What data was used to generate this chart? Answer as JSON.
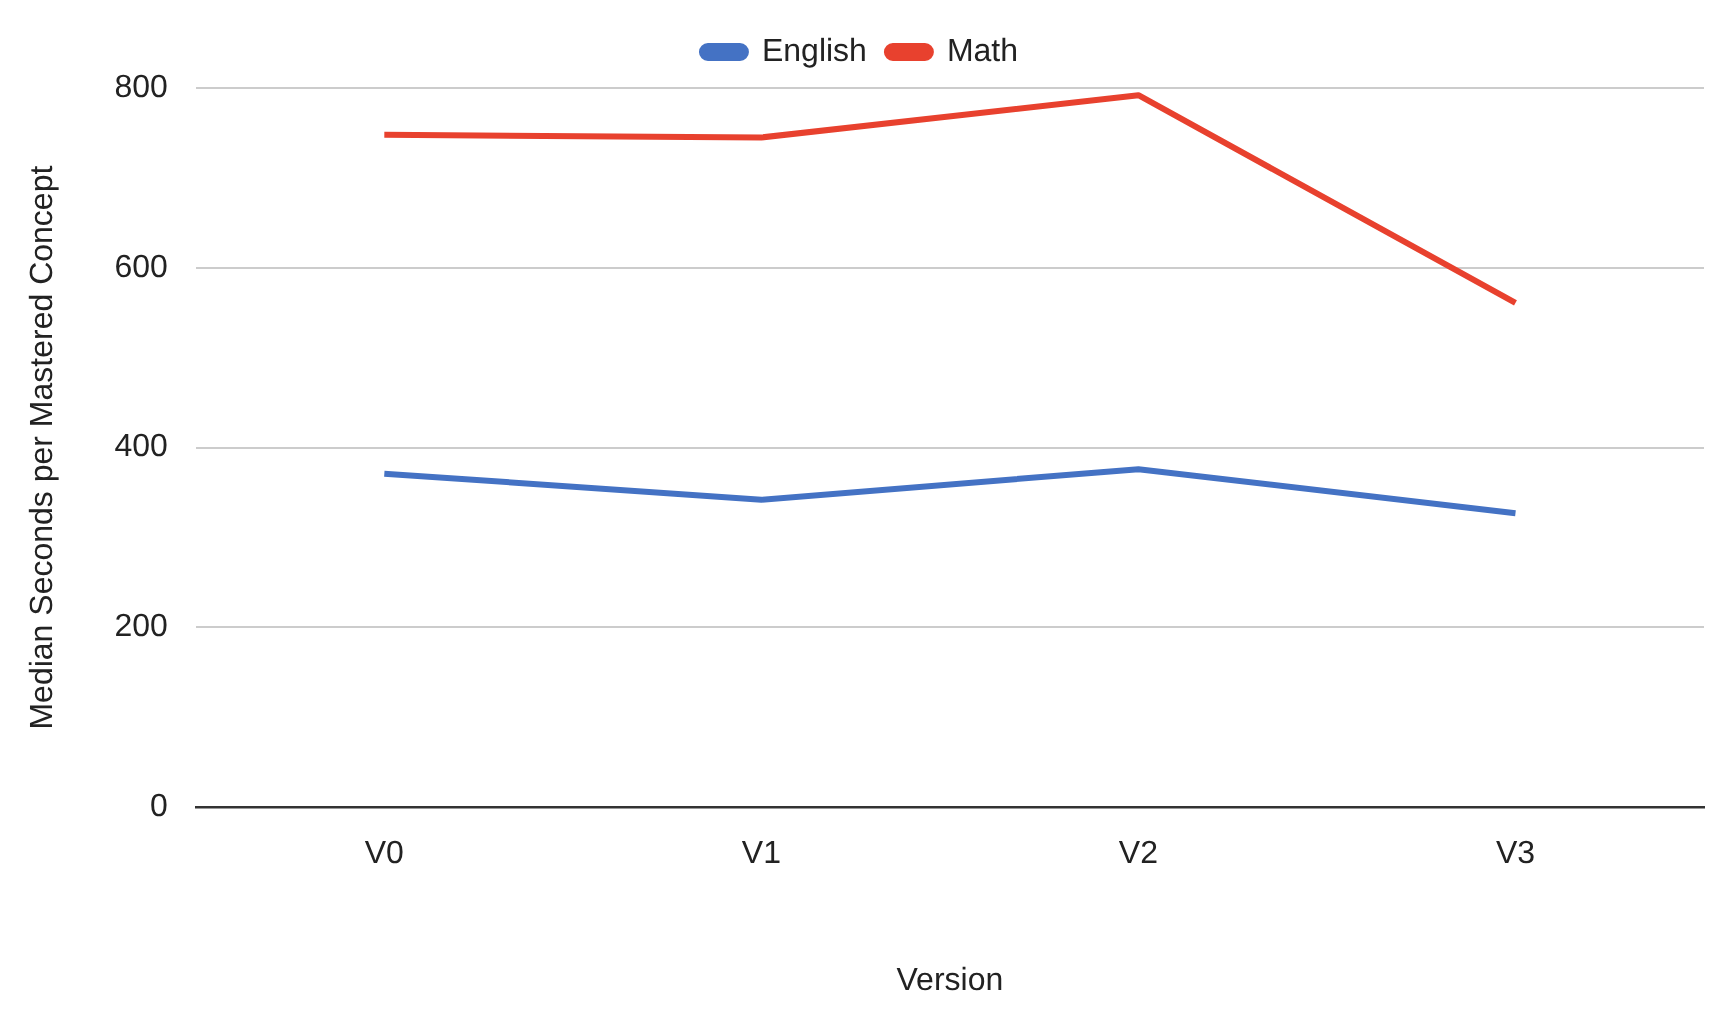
{
  "chart_data": {
    "type": "line",
    "xlabel": "Version",
    "ylabel": "Median Seconds per Mastered Concept",
    "categories": [
      "V0",
      "V1",
      "V2",
      "V3"
    ],
    "series": [
      {
        "name": "English",
        "color": "#4472c4",
        "values": [
          371,
          342,
          376,
          327
        ]
      },
      {
        "name": "Math",
        "color": "#e8412e",
        "values": [
          748,
          745,
          792,
          561
        ]
      }
    ],
    "ylim": [
      0,
      800
    ],
    "yticks": [
      0,
      200,
      400,
      600,
      800
    ],
    "grid": "y",
    "legend": "top",
    "marker": "none",
    "line_style": "solid"
  }
}
